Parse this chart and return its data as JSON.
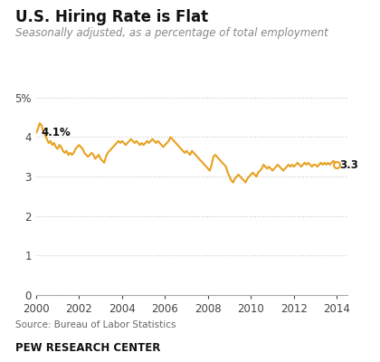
{
  "title": "U.S. Hiring Rate is Flat",
  "subtitle": "Seasonally adjusted, as a percentage of total employment",
  "source": "Source: Bureau of Labor Statistics",
  "footer": "PEW RESEARCH CENTER",
  "line_color": "#E8A020",
  "bg_color": "#ffffff",
  "grid_color": "#c8c8c8",
  "ylim": [
    0,
    5.5
  ],
  "yticks": [
    0,
    1,
    2,
    3,
    4,
    5
  ],
  "ytick_labels": [
    "0",
    "1",
    "2",
    "3",
    "4",
    "5%"
  ],
  "xlim": [
    2000,
    2014.5
  ],
  "xticks": [
    2000,
    2002,
    2004,
    2006,
    2008,
    2010,
    2012,
    2014
  ],
  "first_label": "4.1%",
  "last_label": "3.3",
  "data": {
    "x": [
      2000.0,
      2000.083,
      2000.167,
      2000.25,
      2000.333,
      2000.417,
      2000.5,
      2000.583,
      2000.667,
      2000.75,
      2000.833,
      2000.917,
      2001.0,
      2001.083,
      2001.167,
      2001.25,
      2001.333,
      2001.417,
      2001.5,
      2001.583,
      2001.667,
      2001.75,
      2001.833,
      2001.917,
      2002.0,
      2002.083,
      2002.167,
      2002.25,
      2002.333,
      2002.417,
      2002.5,
      2002.583,
      2002.667,
      2002.75,
      2002.833,
      2002.917,
      2003.0,
      2003.083,
      2003.167,
      2003.25,
      2003.333,
      2003.417,
      2003.5,
      2003.583,
      2003.667,
      2003.75,
      2003.833,
      2003.917,
      2004.0,
      2004.083,
      2004.167,
      2004.25,
      2004.333,
      2004.417,
      2004.5,
      2004.583,
      2004.667,
      2004.75,
      2004.833,
      2004.917,
      2005.0,
      2005.083,
      2005.167,
      2005.25,
      2005.333,
      2005.417,
      2005.5,
      2005.583,
      2005.667,
      2005.75,
      2005.833,
      2005.917,
      2006.0,
      2006.083,
      2006.167,
      2006.25,
      2006.333,
      2006.417,
      2006.5,
      2006.583,
      2006.667,
      2006.75,
      2006.833,
      2006.917,
      2007.0,
      2007.083,
      2007.167,
      2007.25,
      2007.333,
      2007.417,
      2007.5,
      2007.583,
      2007.667,
      2007.75,
      2007.833,
      2007.917,
      2008.0,
      2008.083,
      2008.167,
      2008.25,
      2008.333,
      2008.417,
      2008.5,
      2008.583,
      2008.667,
      2008.75,
      2008.833,
      2008.917,
      2009.0,
      2009.083,
      2009.167,
      2009.25,
      2009.333,
      2009.417,
      2009.5,
      2009.583,
      2009.667,
      2009.75,
      2009.833,
      2009.917,
      2010.0,
      2010.083,
      2010.167,
      2010.25,
      2010.333,
      2010.417,
      2010.5,
      2010.583,
      2010.667,
      2010.75,
      2010.833,
      2010.917,
      2011.0,
      2011.083,
      2011.167,
      2011.25,
      2011.333,
      2011.417,
      2011.5,
      2011.583,
      2011.667,
      2011.75,
      2011.833,
      2011.917,
      2012.0,
      2012.083,
      2012.167,
      2012.25,
      2012.333,
      2012.417,
      2012.5,
      2012.583,
      2012.667,
      2012.75,
      2012.833,
      2012.917,
      2013.0,
      2013.083,
      2013.167,
      2013.25,
      2013.333,
      2013.417,
      2013.5,
      2013.583,
      2013.667,
      2013.75,
      2013.833,
      2013.917,
      2014.0
    ],
    "y": [
      4.1,
      4.2,
      4.35,
      4.3,
      4.15,
      4.05,
      3.95,
      3.85,
      3.9,
      3.8,
      3.85,
      3.75,
      3.7,
      3.8,
      3.75,
      3.65,
      3.6,
      3.65,
      3.55,
      3.6,
      3.55,
      3.6,
      3.7,
      3.75,
      3.8,
      3.75,
      3.7,
      3.6,
      3.55,
      3.5,
      3.55,
      3.6,
      3.55,
      3.45,
      3.5,
      3.55,
      3.45,
      3.4,
      3.35,
      3.5,
      3.6,
      3.65,
      3.7,
      3.75,
      3.8,
      3.85,
      3.9,
      3.85,
      3.9,
      3.85,
      3.8,
      3.85,
      3.9,
      3.95,
      3.9,
      3.85,
      3.9,
      3.85,
      3.8,
      3.85,
      3.8,
      3.85,
      3.9,
      3.85,
      3.9,
      3.95,
      3.9,
      3.85,
      3.9,
      3.85,
      3.8,
      3.75,
      3.8,
      3.85,
      3.9,
      4.0,
      3.95,
      3.9,
      3.85,
      3.8,
      3.75,
      3.7,
      3.65,
      3.6,
      3.65,
      3.6,
      3.55,
      3.65,
      3.6,
      3.55,
      3.5,
      3.45,
      3.4,
      3.35,
      3.3,
      3.25,
      3.2,
      3.15,
      3.3,
      3.5,
      3.55,
      3.5,
      3.45,
      3.4,
      3.35,
      3.3,
      3.25,
      3.1,
      3.0,
      2.9,
      2.85,
      2.95,
      3.0,
      3.05,
      3.0,
      2.95,
      2.9,
      2.85,
      2.95,
      3.0,
      3.05,
      3.1,
      3.05,
      3.0,
      3.1,
      3.15,
      3.2,
      3.3,
      3.25,
      3.2,
      3.25,
      3.2,
      3.15,
      3.2,
      3.25,
      3.3,
      3.25,
      3.2,
      3.15,
      3.2,
      3.25,
      3.3,
      3.25,
      3.3,
      3.25,
      3.3,
      3.35,
      3.3,
      3.25,
      3.3,
      3.35,
      3.3,
      3.35,
      3.3,
      3.25,
      3.3,
      3.3,
      3.25,
      3.3,
      3.35,
      3.3,
      3.35,
      3.3,
      3.35,
      3.3,
      3.35,
      3.4,
      3.35,
      3.3
    ]
  }
}
